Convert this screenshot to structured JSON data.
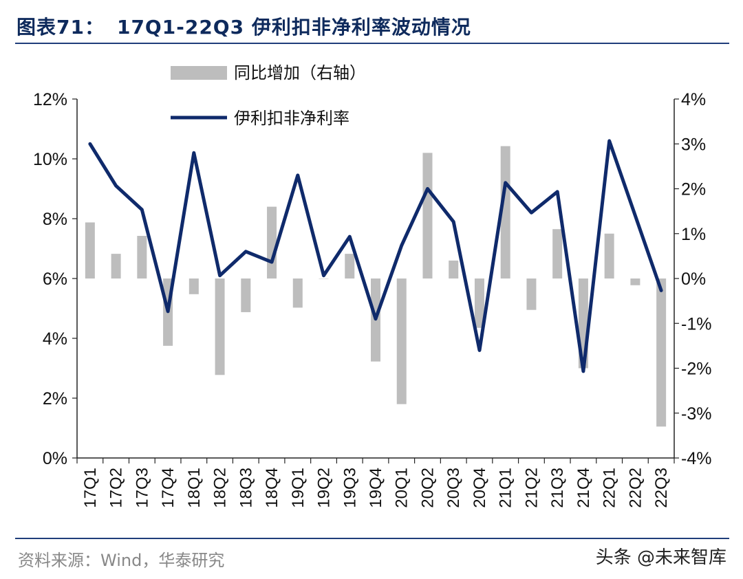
{
  "figure_label": "图表71：",
  "figure_title": "17Q1-22Q3 伊利扣非净利率波动情况",
  "source": "资料来源：Wind，华泰研究",
  "watermark": "头条 @未来智库",
  "colors": {
    "line": "#0f2a6b",
    "bar": "#bdbdbd",
    "rule": "#1f3d7a"
  },
  "chart_data": {
    "type": "bar+line",
    "categories": [
      "17Q1",
      "17Q2",
      "17Q3",
      "17Q4",
      "18Q1",
      "18Q2",
      "18Q3",
      "18Q4",
      "19Q1",
      "19Q2",
      "19Q3",
      "19Q4",
      "20Q1",
      "20Q2",
      "20Q3",
      "20Q4",
      "21Q1",
      "21Q2",
      "21Q3",
      "21Q4",
      "22Q1",
      "22Q2",
      "22Q3"
    ],
    "series": [
      {
        "name": "同比增加（右轴）",
        "type": "bar",
        "axis": "right",
        "values": [
          1.25,
          0.55,
          0.95,
          -1.5,
          -0.35,
          -2.15,
          -0.75,
          1.6,
          -0.65,
          0.0,
          0.55,
          -1.85,
          -2.8,
          2.8,
          0.4,
          -1.1,
          2.95,
          -0.7,
          1.1,
          -2.0,
          1.0,
          -0.15,
          -3.3
        ]
      },
      {
        "name": "伊利扣非净利率",
        "type": "line",
        "axis": "left",
        "values": [
          10.5,
          9.1,
          8.3,
          4.9,
          10.2,
          6.1,
          6.9,
          6.55,
          9.45,
          6.1,
          7.4,
          4.65,
          7.1,
          9.0,
          7.9,
          3.6,
          9.2,
          8.2,
          8.9,
          2.9,
          10.6,
          8.1,
          5.6
        ]
      }
    ],
    "ylim_left": [
      0,
      12
    ],
    "yticks_left": [
      "0%",
      "2%",
      "4%",
      "6%",
      "8%",
      "10%",
      "12%"
    ],
    "ylim_right": [
      -4,
      4
    ],
    "yticks_right": [
      "-4%",
      "-3%",
      "-2%",
      "-1%",
      "0%",
      "1%",
      "2%",
      "3%",
      "4%"
    ],
    "legend_position": "top-left"
  }
}
